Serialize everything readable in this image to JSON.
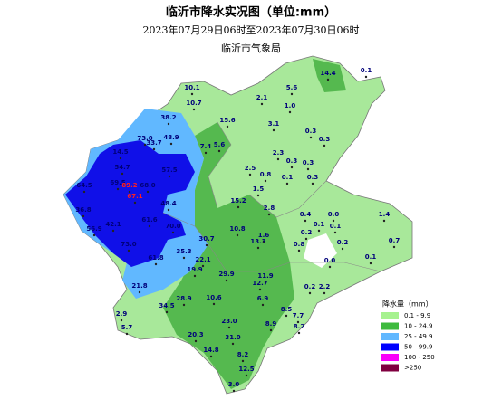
{
  "header": {
    "title": "临沂市降水实况图（单位:mm）",
    "subtitle": "2023年07月29日06时至2023年07月30日06时",
    "agency": "临沂市气象局"
  },
  "legend": {
    "title": "降水量（mm）",
    "items": [
      {
        "label": "0.1 - 9.9",
        "color": "#a6f28f"
      },
      {
        "label": "10 - 24.9",
        "color": "#3dba3d"
      },
      {
        "label": "25 - 49.9",
        "color": "#61b8ff"
      },
      {
        "label": "50 - 99.9",
        "color": "#0000fe"
      },
      {
        "label": "100 - 250",
        "color": "#fa00fa"
      },
      {
        "label": ">250",
        "color": "#800040"
      }
    ]
  },
  "stations": [
    "14.4",
    "0.1",
    "10.1",
    "5.6",
    "2.1",
    "10.7",
    "1.0",
    "38.2",
    "15.6",
    "3.1",
    "0.3",
    "0.3",
    "73.0",
    "48.9",
    "33.7",
    "7.4",
    "5.6",
    "14.5",
    "2.3",
    "0.3",
    "54.7",
    "57.5",
    "2.5",
    "0.8",
    "0.3",
    "0.3",
    "0.1",
    "69.5",
    "89.2",
    "68.0",
    "64.5",
    "67.1",
    "1.5",
    "48.4",
    "15.2",
    "2.8",
    "36.8",
    "0.4",
    "0.0",
    "1.4",
    "42.1",
    "61.6",
    "70.0",
    "0.1",
    "0.1",
    "56.9",
    "10.8",
    "1.6",
    "30.7",
    "0.2",
    "0.2",
    "0.7",
    "73.0",
    "13.3",
    "35.3",
    "0.8",
    "61.8",
    "22.1",
    "0.0",
    "0.1",
    "19.9",
    "29.9",
    "11.9",
    "12.7",
    "21.8",
    "0.2",
    "2.2",
    "28.9",
    "10.6",
    "6.9",
    "34.5",
    "8.5",
    "2.9",
    "7.7",
    "23.0",
    "5.7",
    "8.9",
    "8.2",
    "20.3",
    "31.0",
    "14.8",
    "8.2",
    "12.5",
    "3.0"
  ]
}
